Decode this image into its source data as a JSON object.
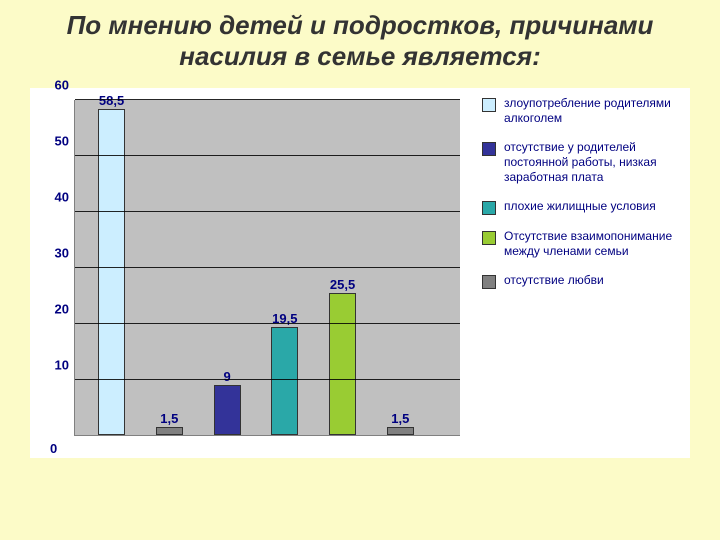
{
  "slide": {
    "background_color": "#fcfbc8",
    "title": "По мнению детей и подростков, причинами насилия в семье является:",
    "title_color": "#333333",
    "title_fontsize": 26
  },
  "chart": {
    "type": "bar",
    "background_color": "#ffffff",
    "plot_background_color": "#c0c0c0",
    "gridline_color": "#000000",
    "axis_color": "#808080",
    "ylim": [
      0,
      60
    ],
    "ytick_step": 10,
    "yticks": [
      0,
      10,
      20,
      30,
      40,
      50,
      60
    ],
    "ylabel_color": "#000080",
    "ylabel_fontsize": 13,
    "bar_label_color": "#000080",
    "bar_label_fontsize": 13,
    "bar_width_pct": 7,
    "bar_gap_pct": 8,
    "bar_group_left_pct": 6,
    "series": [
      {
        "name": "злоупотребление родителями алкоголем",
        "value": 58.5,
        "value_label": "58,5",
        "color": "#cceeff"
      },
      {
        "name": "отсутствие у родителей постоянной работы, низкая заработная плата",
        "value": 1.5,
        "value_label": "1,5",
        "color": "#808080"
      },
      {
        "name": "плохие жилищные условия",
        "value": 9,
        "value_label": "9",
        "color": "#333399"
      },
      {
        "name": "Отсутствие взаимопонимание между членами семьи",
        "value": 19.5,
        "value_label": "19,5",
        "color": "#2aa8a8"
      },
      {
        "name": "отсутствие любви",
        "value": 25.5,
        "value_label": "25,5",
        "color": "#99cc33"
      },
      {
        "name": "",
        "value": 1.5,
        "value_label": "1,5",
        "color": "#808080"
      }
    ],
    "legend": [
      {
        "label": "злоупотребление родителями алкоголем",
        "color": "#cceeff"
      },
      {
        "label": "отсутствие у родителей постоянной работы, низкая заработная плата",
        "color": "#333399"
      },
      {
        "label": "плохие жилищные условия",
        "color": "#2aa8a8"
      },
      {
        "label": "Отсутствие взаимопонимание между членами семьи",
        "color": "#99cc33"
      },
      {
        "label": "отсутствие любви",
        "color": "#808080"
      }
    ],
    "legend_fontsize": 12,
    "legend_color": "#000080",
    "xaxis_zero_label": "0"
  }
}
